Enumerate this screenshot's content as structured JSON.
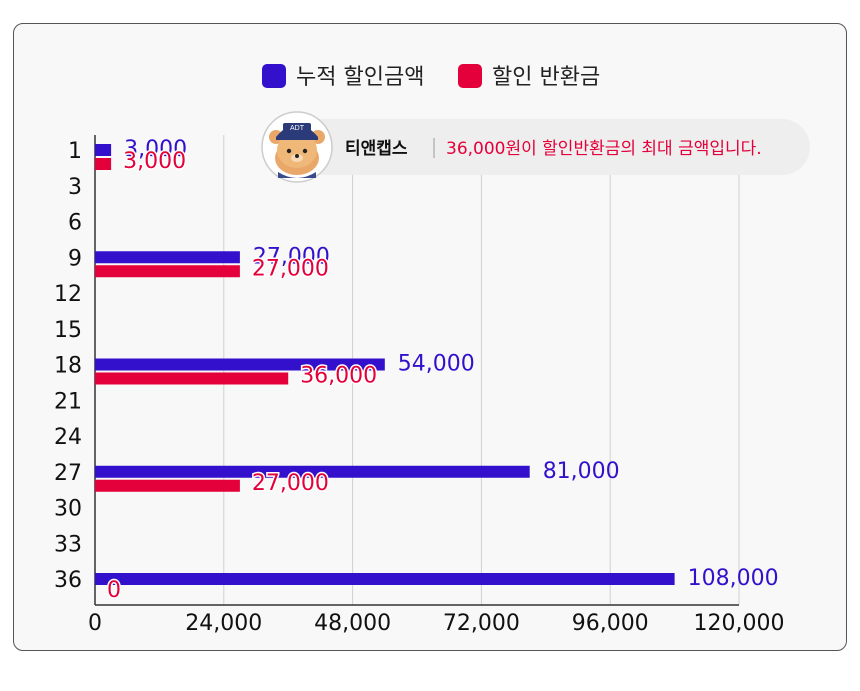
{
  "colors": {
    "accumulated": "#3311cc",
    "refund": "#e4003a"
  },
  "tooltip": {
    "brand": "티앤캡스",
    "message": "36,000원이 할인반환금의 최대 금액입니다.",
    "mascot_icon": "bear-mascot-icon",
    "cap_text": "ADT"
  },
  "chart_data": {
    "type": "bar",
    "orientation": "horizontal",
    "categories": [
      "1",
      "3",
      "6",
      "9",
      "12",
      "15",
      "18",
      "21",
      "24",
      "27",
      "30",
      "33",
      "36"
    ],
    "series": [
      {
        "name": "누적 할인금액",
        "values": [
          3000,
          null,
          null,
          27000,
          null,
          null,
          54000,
          null,
          null,
          81000,
          null,
          null,
          108000
        ]
      },
      {
        "name": "할인 반환금",
        "values": [
          3000,
          null,
          null,
          27000,
          null,
          null,
          36000,
          null,
          null,
          27000,
          null,
          null,
          0
        ]
      }
    ],
    "value_labels": {
      "accumulated": [
        "3,000",
        "",
        "",
        "27,000",
        "",
        "",
        "54,000",
        "",
        "",
        "81,000",
        "",
        "",
        "108,000"
      ],
      "refund": [
        "3,000",
        "",
        "",
        "27,000",
        "",
        "",
        "36,000",
        "",
        "",
        "27,000",
        "",
        "",
        "0"
      ]
    },
    "x_ticks": [
      "0",
      "24,000",
      "48,000",
      "72,000",
      "96,000",
      "120,000"
    ],
    "xlim": [
      0,
      120000
    ],
    "legend_position": "top-center",
    "grid": "vertical"
  }
}
